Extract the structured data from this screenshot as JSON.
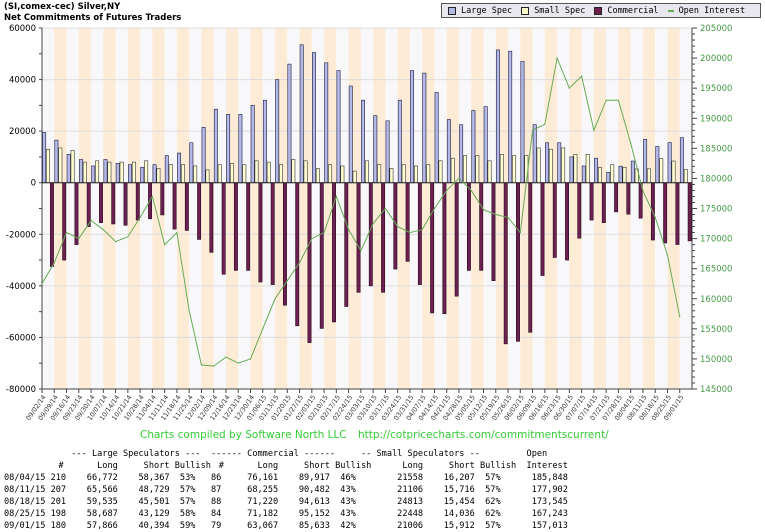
{
  "header": {
    "title_line1": "(SI,comex-cec) Silver,NY",
    "title_line2": "Net Commitments of Futures Traders"
  },
  "legend": [
    {
      "label": "Large Spec",
      "color": "#b4b8e6",
      "kind": "box"
    },
    {
      "label": "Small Spec",
      "color": "#ffffd0",
      "kind": "box"
    },
    {
      "label": "Commercial",
      "color": "#6b2050",
      "kind": "box"
    },
    {
      "label": "Open Interest",
      "color": "#66aa55",
      "kind": "line"
    }
  ],
  "credit": {
    "text": "Charts compiled by Software North LLC",
    "url": "http://cotpricecharts.com/commitmentscurrent/"
  },
  "chart_data": {
    "type": "bar",
    "title": "Net Commitments of Futures Traders",
    "left_axis": {
      "min": -80000,
      "max": 60000,
      "ticks": [
        60000,
        40000,
        20000,
        0,
        -20000,
        -40000,
        -60000,
        -80000
      ]
    },
    "right_axis": {
      "min": 145000,
      "max": 205000,
      "ticks": [
        205000,
        200000,
        195000,
        190000,
        185000,
        180000,
        175000,
        170000,
        165000,
        160000,
        155000,
        150000,
        145000
      ]
    },
    "grid": true,
    "legend_position": "top-right",
    "categories": [
      "09/02/14",
      "09/09/14",
      "09/16/14",
      "09/23/14",
      "09/30/14",
      "10/07/14",
      "10/14/14",
      "10/21/14",
      "10/28/14",
      "11/04/14",
      "11/11/14",
      "11/18/14",
      "11/25/14",
      "12/02/14",
      "12/09/14",
      "12/16/14",
      "12/23/14",
      "12/30/14",
      "01/06/15",
      "01/13/15",
      "01/20/15",
      "01/27/15",
      "02/03/15",
      "02/10/15",
      "02/17/15",
      "02/24/15",
      "03/03/15",
      "03/10/15",
      "03/17/15",
      "03/24/15",
      "03/31/15",
      "04/07/15",
      "04/14/15",
      "04/21/15",
      "04/28/15",
      "05/05/15",
      "05/12/15",
      "05/19/15",
      "05/26/15",
      "06/02/15",
      "06/09/15",
      "06/16/15",
      "06/23/15",
      "06/30/15",
      "07/07/15",
      "07/14/15",
      "07/21/15",
      "07/28/15",
      "08/04/15",
      "08/11/15",
      "08/18/15",
      "08/25/15",
      "09/01/15"
    ],
    "series": [
      {
        "name": "Large Spec",
        "axis": "left",
        "values": [
          19500,
          16500,
          11000,
          9000,
          6500,
          9000,
          7500,
          7000,
          6000,
          7000,
          10500,
          11500,
          15500,
          21500,
          28500,
          26500,
          26500,
          30000,
          32000,
          40000,
          46000,
          53500,
          50500,
          46500,
          43500,
          37500,
          32000,
          26000,
          24000,
          32000,
          43500,
          42500,
          35000,
          24500,
          22500,
          28000,
          29500,
          51500,
          51000,
          47000,
          22500,
          15500,
          15500,
          10000,
          6500,
          9500,
          4000,
          6400,
          8405,
          16837,
          14034,
          15558,
          17472
        ]
      },
      {
        "name": "Small Spec",
        "axis": "left",
        "values": [
          13000,
          13500,
          12500,
          8000,
          8500,
          8000,
          8000,
          8000,
          8500,
          5500,
          7000,
          7000,
          6500,
          5000,
          7000,
          7500,
          7000,
          8500,
          8000,
          7000,
          9000,
          8500,
          5500,
          7000,
          6500,
          4500,
          8500,
          7000,
          5500,
          7000,
          6500,
          7000,
          8500,
          9500,
          10500,
          10500,
          8500,
          11000,
          10500,
          10500,
          13500,
          13000,
          13500,
          11000,
          11000,
          6000,
          7000,
          6000,
          5351,
          5390,
          9359,
          8412,
          5094
        ]
      },
      {
        "name": "Commercial",
        "axis": "left",
        "values": [
          -32500,
          -30000,
          -24000,
          -17000,
          -15500,
          -16000,
          -16500,
          -14500,
          -14000,
          -12500,
          -18000,
          -18500,
          -22000,
          -27000,
          -35500,
          -34000,
          -34000,
          -38500,
          -39500,
          -47500,
          -55500,
          -62000,
          -56500,
          -54000,
          -48000,
          -42500,
          -40000,
          -42500,
          -33500,
          -30500,
          -39500,
          -50500,
          -50800,
          -44000,
          -34000,
          -34000,
          -38000,
          -62500,
          -61500,
          -58000,
          -36000,
          -29000,
          -30000,
          -21500,
          -14500,
          -15500,
          -11300,
          -12200,
          -13756,
          -22227,
          -23393,
          -23970,
          -22566
        ]
      },
      {
        "name": "Open Interest",
        "axis": "right",
        "type": "line",
        "values": [
          162500,
          166000,
          171000,
          170000,
          173000,
          171500,
          169500,
          170300,
          173500,
          177000,
          169000,
          171000,
          158000,
          149000,
          148800,
          150300,
          149300,
          150000,
          155000,
          160000,
          163000,
          166000,
          170000,
          171000,
          177000,
          171500,
          168000,
          172500,
          175000,
          172000,
          171000,
          171500,
          175000,
          178000,
          180000,
          178000,
          174800,
          174000,
          173500,
          171000,
          188000,
          189000,
          200000,
          195000,
          197000,
          188000,
          193000,
          193000,
          185848,
          177902,
          173545,
          167243,
          157013
        ]
      }
    ]
  },
  "table": {
    "group_headers": {
      "large": "--- Large Speculators ---",
      "commercial": "------ Commercial ------",
      "small": "-- Small Speculators --",
      "open": "Open"
    },
    "col_headers": {
      "num": "#",
      "long": "Long",
      "short": "Short",
      "bullish": "Bullish",
      "c_num": "#",
      "c_long": "Long",
      "c_short": "Short",
      "c_bullish": "Bullish",
      "s_long": "Long",
      "s_short": "Short",
      "s_bullish": "Bullish",
      "oi": "Interest"
    },
    "rows": [
      {
        "date": "08/04/15",
        "l_num": "210",
        "l_long": "66,772",
        "l_short": "58,367",
        "l_bull": "53%",
        "c_num": "86",
        "c_long": "76,161",
        "c_short": "89,917",
        "c_bull": "46%",
        "s_long": "21558",
        "s_short": "16,207",
        "s_bull": "57%",
        "oi": "185,848"
      },
      {
        "date": "08/11/15",
        "l_num": "207",
        "l_long": "65,566",
        "l_short": "48,729",
        "l_bull": "57%",
        "c_num": "87",
        "c_long": "68,255",
        "c_short": "90,482",
        "c_bull": "43%",
        "s_long": "21106",
        "s_short": "15,716",
        "s_bull": "57%",
        "oi": "177,902"
      },
      {
        "date": "08/18/15",
        "l_num": "201",
        "l_long": "59,535",
        "l_short": "45,501",
        "l_bull": "57%",
        "c_num": "88",
        "c_long": "71,220",
        "c_short": "94,613",
        "c_bull": "43%",
        "s_long": "24813",
        "s_short": "15,454",
        "s_bull": "62%",
        "oi": "173,545"
      },
      {
        "date": "08/25/15",
        "l_num": "198",
        "l_long": "58,687",
        "l_short": "43,129",
        "l_bull": "58%",
        "c_num": "84",
        "c_long": "71,182",
        "c_short": "95,152",
        "c_bull": "43%",
        "s_long": "22448",
        "s_short": "14,036",
        "s_bull": "62%",
        "oi": "167,243"
      },
      {
        "date": "09/01/15",
        "l_num": "180",
        "l_long": "57,866",
        "l_short": "40,394",
        "l_bull": "59%",
        "c_num": "79",
        "c_long": "63,067",
        "c_short": "85,633",
        "c_bull": "42%",
        "s_long": "21006",
        "s_short": "15,912",
        "s_bull": "57%",
        "oi": "157,013"
      }
    ]
  }
}
